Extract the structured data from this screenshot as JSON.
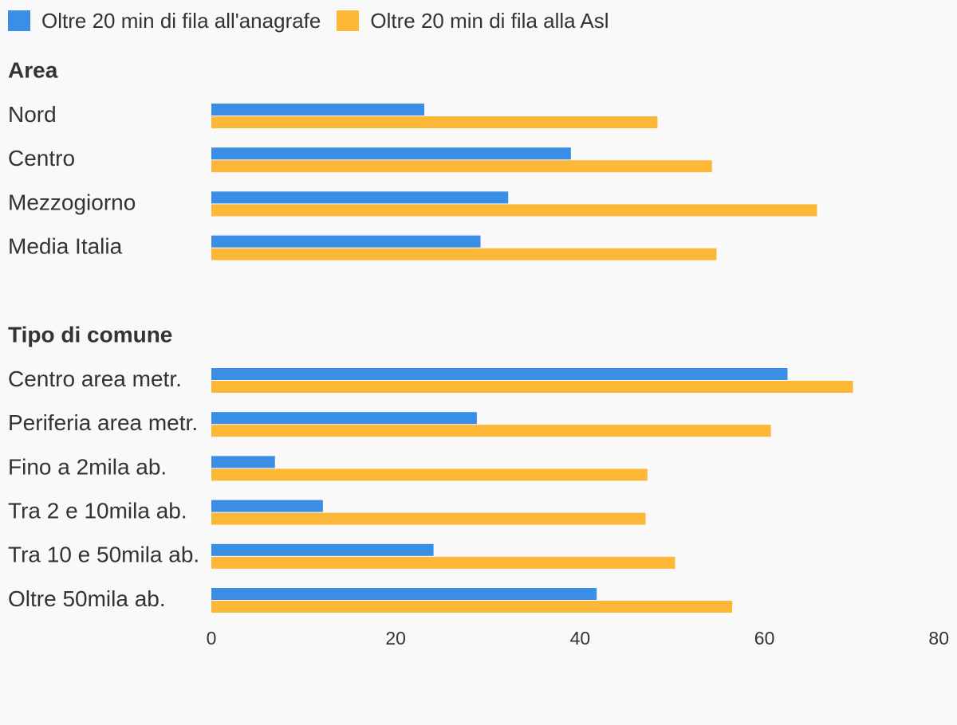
{
  "colors": {
    "series_1": "#3a8ee6",
    "series_2": "#fdb737",
    "background": "#f9f9f9",
    "text": "#333333"
  },
  "legend": {
    "item_1": "Oltre 20 min di fila all'anagrafe",
    "item_2": "Oltre 20 min di fila alla Asl"
  },
  "chart_data": {
    "type": "bar",
    "orientation": "horizontal",
    "xlim": [
      0,
      80
    ],
    "ticks": [
      0,
      20,
      40,
      60,
      80
    ],
    "grid": false,
    "legend_position": "top-left",
    "series": [
      {
        "name": "Oltre 20 min di fila all'anagrafe",
        "color": "#3a8ee6"
      },
      {
        "name": "Oltre 20 min di fila alla Asl",
        "color": "#fdb737"
      }
    ],
    "groups": [
      {
        "title": "Area",
        "categories": [
          "Nord",
          "Centro",
          "Mezzogiorno",
          "Media Italia"
        ],
        "values": [
          [
            23.1,
            48.4
          ],
          [
            39.0,
            54.3
          ],
          [
            32.2,
            65.7
          ],
          [
            29.2,
            54.8
          ]
        ]
      },
      {
        "title": "Tipo di comune",
        "categories": [
          "Centro area metr.",
          "Periferia area metr.",
          "Fino a 2mila ab.",
          "Tra 2 e 10mila ab.",
          "Tra 10 e 50mila ab.",
          "Oltre 50mila ab."
        ],
        "values": [
          [
            62.5,
            69.6
          ],
          [
            28.8,
            60.7
          ],
          [
            6.9,
            47.3
          ],
          [
            12.1,
            47.1
          ],
          [
            24.1,
            50.3
          ],
          [
            41.8,
            56.5
          ]
        ]
      }
    ]
  }
}
